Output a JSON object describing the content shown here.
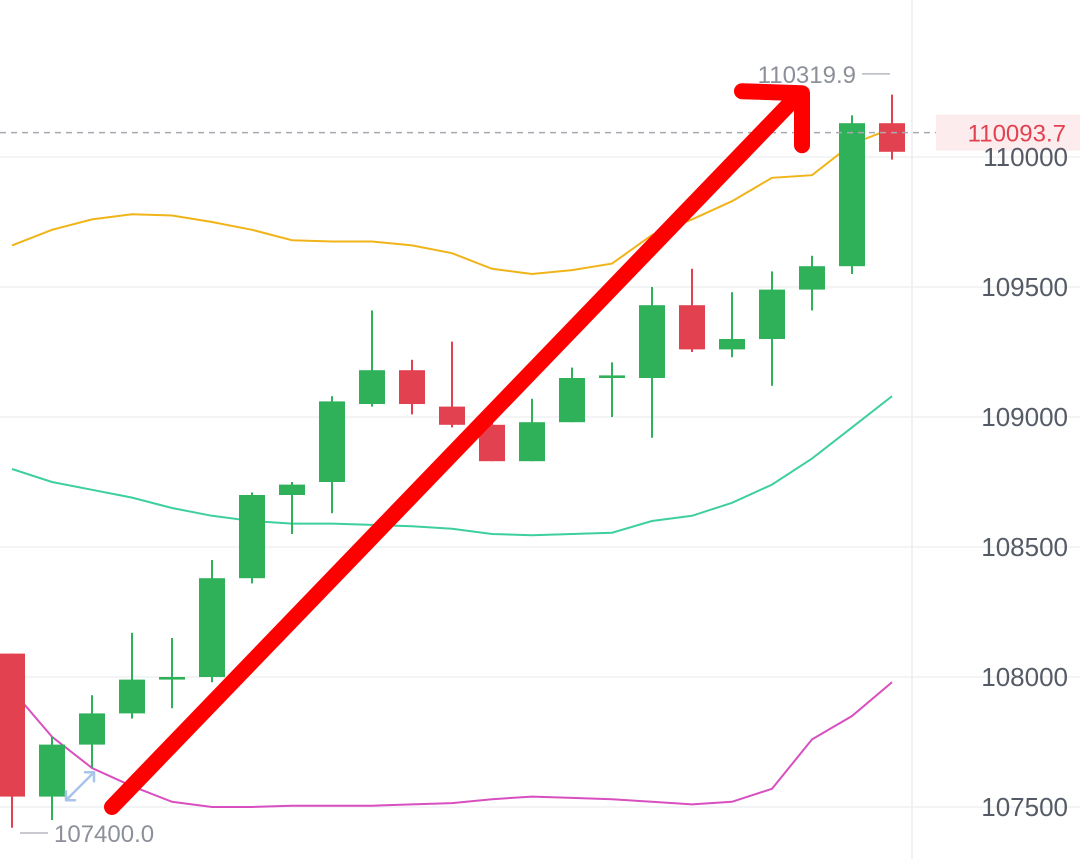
{
  "chart_data": {
    "type": "candlestick",
    "title": "",
    "xlabel": "",
    "ylabel": "",
    "ylim": [
      107300,
      110580
    ],
    "y_ticks": [
      "107500",
      "108000",
      "108500",
      "109000",
      "109500",
      "110000"
    ],
    "colors": {
      "up": "#2fb15a",
      "down": "#e2424f",
      "upper_band": "#f0b418",
      "middle_band": "#3ecf9f",
      "lower_band": "#d84fc0",
      "arrow": "#ff0000",
      "current_price": "#e2424f",
      "grid": "#eef0f2",
      "axis_text": "#555b66"
    },
    "candles": [
      {
        "open": 108090,
        "close": 107540,
        "high": 108090,
        "low": 107420
      },
      {
        "open": 107540,
        "close": 107740,
        "high": 107770,
        "low": 107450
      },
      {
        "open": 107740,
        "close": 107860,
        "high": 107930,
        "low": 107650
      },
      {
        "open": 107860,
        "close": 107990,
        "high": 108170,
        "low": 107840
      },
      {
        "open": 107990,
        "close": 108000,
        "high": 108150,
        "low": 107880
      },
      {
        "open": 108000,
        "close": 108380,
        "high": 108450,
        "low": 107980
      },
      {
        "open": 108380,
        "close": 108700,
        "high": 108710,
        "low": 108360
      },
      {
        "open": 108700,
        "close": 108740,
        "high": 108750,
        "low": 108550
      },
      {
        "open": 108750,
        "close": 109060,
        "high": 109080,
        "low": 108630
      },
      {
        "open": 109050,
        "close": 109180,
        "high": 109410,
        "low": 109040
      },
      {
        "open": 109180,
        "close": 109050,
        "high": 109220,
        "low": 109010
      },
      {
        "open": 109040,
        "close": 108970,
        "high": 109290,
        "low": 108960
      },
      {
        "open": 108970,
        "close": 108830,
        "high": 108980,
        "low": 108830
      },
      {
        "open": 108830,
        "close": 108980,
        "high": 109070,
        "low": 108830
      },
      {
        "open": 108980,
        "close": 109150,
        "high": 109190,
        "low": 108980
      },
      {
        "open": 109150,
        "close": 109160,
        "high": 109210,
        "low": 109000
      },
      {
        "open": 109150,
        "close": 109430,
        "high": 109500,
        "low": 108920
      },
      {
        "open": 109430,
        "close": 109260,
        "high": 109570,
        "low": 109250
      },
      {
        "open": 109260,
        "close": 109300,
        "high": 109480,
        "low": 109230
      },
      {
        "open": 109300,
        "close": 109490,
        "high": 109560,
        "low": 109120
      },
      {
        "open": 109490,
        "close": 109580,
        "high": 109620,
        "low": 109410
      },
      {
        "open": 109580,
        "close": 110130,
        "high": 110160,
        "low": 109550
      },
      {
        "open": 110130,
        "close": 110020,
        "high": 110240,
        "low": 109990
      }
    ],
    "bands": {
      "upper": [
        109660,
        109720,
        109760,
        109780,
        109775,
        109750,
        109720,
        109680,
        109675,
        109675,
        109660,
        109630,
        109570,
        109550,
        109565,
        109590,
        109700,
        109760,
        109830,
        109920,
        109930,
        110050,
        110110
      ],
      "middle": [
        108800,
        108750,
        108720,
        108690,
        108650,
        108620,
        108600,
        108590,
        108590,
        108585,
        108580,
        108570,
        108550,
        108545,
        108550,
        108555,
        108600,
        108620,
        108670,
        108740,
        108840,
        108960,
        109080
      ],
      "lower": [
        107950,
        107770,
        107650,
        107580,
        107520,
        107500,
        107500,
        107505,
        107505,
        107505,
        107510,
        107515,
        107530,
        107540,
        107535,
        107530,
        107520,
        107510,
        107520,
        107570,
        107760,
        107850,
        107980
      ]
    },
    "annotations": {
      "high_label": "110319.9",
      "high_value": 110319.9,
      "low_label": "107400.0",
      "low_value": 107400.0,
      "current_price_label": "110093.7",
      "current_price": 110093.7
    },
    "arrow": {
      "start": {
        "index": 2.5,
        "value": 107500
      },
      "end": {
        "index": 19.6,
        "value": 110230
      }
    }
  }
}
